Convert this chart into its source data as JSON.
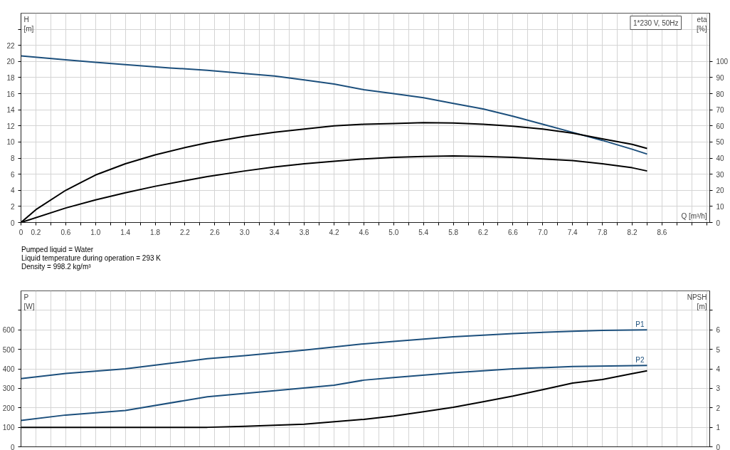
{
  "chart_data": [
    {
      "type": "line",
      "ylabel": "H\n[m]",
      "y2label": "eta\n[%]",
      "xlabel": "Q [m³/h]",
      "grid": true,
      "annotations": [
        "1*230 V, 50Hz"
      ],
      "xlim": [
        0,
        9.24
      ],
      "ylim": [
        0,
        26
      ],
      "y2lim": [
        0,
        130
      ],
      "xticks": [
        0,
        0.2,
        {
          "value": 0.4,
          "label": null
        },
        0.6,
        {
          "value": 0.8,
          "label": null
        },
        {
          "value": 1,
          "label": "1.0"
        },
        {
          "value": 1.2,
          "label": null
        },
        1.4,
        {
          "value": 1.6,
          "label": null
        },
        1.8,
        {
          "value": 2,
          "label": null
        },
        2.2,
        {
          "value": 2.4,
          "label": null
        },
        2.6,
        {
          "value": 2.8,
          "label": null
        },
        {
          "value": 3,
          "label": "3.0"
        },
        {
          "value": 3.2,
          "label": null
        },
        3.4,
        {
          "value": 3.6,
          "label": null
        },
        3.8,
        {
          "value": 4,
          "label": null
        },
        4.2,
        {
          "value": 4.4,
          "label": null
        },
        4.6,
        {
          "value": 4.8,
          "label": null
        },
        {
          "value": 5,
          "label": "5.0"
        },
        {
          "value": 5.2,
          "label": null
        },
        5.4,
        {
          "value": 5.6,
          "label": null
        },
        5.8,
        {
          "value": 6,
          "label": null
        },
        6.2,
        {
          "value": 6.4,
          "label": null
        },
        6.6,
        {
          "value": 6.8,
          "label": null
        },
        {
          "value": 7,
          "label": "7.0"
        },
        {
          "value": 7.2,
          "label": null
        },
        7.4,
        {
          "value": 7.6,
          "label": null
        },
        7.8,
        {
          "value": 8,
          "label": null
        },
        8.2,
        {
          "value": 8.4,
          "label": null
        },
        8.6,
        {
          "value": 8.8,
          "label": null
        },
        {
          "value": 9,
          "label": null
        },
        {
          "value": 9.2,
          "label": null
        }
      ],
      "yticks": [
        0,
        2,
        4,
        6,
        8,
        10,
        12,
        14,
        16,
        18,
        20,
        22,
        {
          "value": 24,
          "label": null
        }
      ],
      "y2ticks": [
        0,
        10,
        20,
        30,
        40,
        50,
        60,
        70,
        80,
        90,
        100
      ],
      "series": [
        {
          "color": "#1c4f7c",
          "x": [
            0,
            0.6,
            1.0,
            1.4,
            2.0,
            2.5,
            3.0,
            3.4,
            3.8,
            4.2,
            4.6,
            5.0,
            5.4,
            5.8,
            6.2,
            6.6,
            7.0,
            7.4,
            7.8,
            8.2,
            8.4
          ],
          "values": [
            20.7,
            20.2,
            19.9,
            19.6,
            19.2,
            18.9,
            18.5,
            18.2,
            17.7,
            17.2,
            16.5,
            16.0,
            15.5,
            14.8,
            14.1,
            13.2,
            12.2,
            11.2,
            10.2,
            9.1,
            8.5
          ]
        },
        {
          "color": "#000000",
          "axis": "y2",
          "x": [
            0,
            0.2,
            0.6,
            1.0,
            1.4,
            1.8,
            2.2,
            2.5,
            3.0,
            3.4,
            3.8,
            4.2,
            4.6,
            5.0,
            5.4,
            5.8,
            6.2,
            6.6,
            7.0,
            7.4,
            7.8,
            8.2,
            8.4
          ],
          "values": [
            0,
            8,
            20,
            29.5,
            36.5,
            42,
            46.5,
            49.5,
            53.5,
            56,
            58,
            60,
            61,
            61.5,
            62,
            61.8,
            61,
            59.8,
            58,
            55.5,
            52,
            48.5,
            46
          ]
        },
        {
          "color": "#000000",
          "axis": "y2",
          "x": [
            0,
            0.6,
            1.0,
            1.4,
            1.8,
            2.2,
            2.5,
            3.0,
            3.4,
            3.8,
            4.2,
            4.6,
            5.0,
            5.4,
            5.8,
            6.2,
            6.6,
            7.0,
            7.4,
            7.8,
            8.2,
            8.4
          ],
          "values": [
            0,
            9,
            14,
            18.5,
            22.5,
            26,
            28.5,
            32,
            34.5,
            36.5,
            38,
            39.5,
            40.5,
            41,
            41.3,
            41,
            40.5,
            39.5,
            38.5,
            36.5,
            34,
            32
          ]
        }
      ]
    },
    {
      "type": "line",
      "ylabel": "P\n[W]",
      "y2label": "NPSH\n[m]",
      "grid": true,
      "tick_labels": "y",
      "annotations": [
        "Pumped liquid = Water",
        "Liquid temperature during operation = 293 K",
        "Density = 998.2 kg/m³"
      ],
      "xlim": [
        0,
        9.24
      ],
      "ylim": [
        0,
        800
      ],
      "y2lim": [
        0,
        8
      ],
      "xticks": [
        0,
        0.2,
        0.4,
        0.6,
        0.8,
        1,
        1.2,
        1.4,
        1.6,
        1.8,
        2,
        2.2,
        2.4,
        2.6,
        2.8,
        3,
        3.2,
        3.4,
        3.6,
        3.8,
        4,
        4.2,
        4.4,
        4.6,
        4.8,
        5,
        5.2,
        5.4,
        5.6,
        5.8,
        6,
        6.2,
        6.4,
        6.6,
        6.8,
        7,
        7.2,
        7.4,
        7.6,
        7.8,
        8,
        8.2,
        8.4,
        8.6,
        8.8,
        9,
        9.2
      ],
      "yticks": [
        0,
        100,
        200,
        300,
        400,
        500,
        600,
        {
          "value": 700,
          "label": null
        }
      ],
      "y2ticks": [
        0,
        1,
        2,
        3,
        4,
        5,
        6,
        {
          "value": 7,
          "label": null
        }
      ],
      "series": [
        {
          "name": "P1",
          "color": "#1c4f7c",
          "x": [
            0,
            0.6,
            1.4,
            2.0,
            2.5,
            3.0,
            3.8,
            4.6,
            5.0,
            5.8,
            6.6,
            7.4,
            7.8,
            8.4
          ],
          "values": [
            350,
            376,
            400,
            428,
            452,
            468,
            496,
            528,
            541,
            564,
            581,
            593,
            597,
            600
          ]
        },
        {
          "name": "P2",
          "color": "#1c4f7c",
          "x": [
            0,
            0.6,
            1.4,
            2.5,
            3.4,
            4.2,
            4.6,
            5.0,
            5.8,
            6.6,
            7.4,
            8.4
          ],
          "values": [
            135,
            163,
            186,
            257,
            288,
            316,
            342,
            355,
            380,
            400,
            412,
            417
          ]
        },
        {
          "color": "#000000",
          "axis": "y2",
          "x": [
            0,
            2.5,
            3.0,
            3.8,
            4.6,
            5.0,
            5.4,
            5.8,
            6.2,
            6.6,
            7.0,
            7.4,
            7.8,
            8.2,
            8.4
          ],
          "values": [
            1.0,
            1.0,
            1.05,
            1.16,
            1.41,
            1.58,
            1.8,
            2.03,
            2.31,
            2.6,
            2.93,
            3.27,
            3.45,
            3.75,
            3.9
          ]
        }
      ]
    }
  ]
}
